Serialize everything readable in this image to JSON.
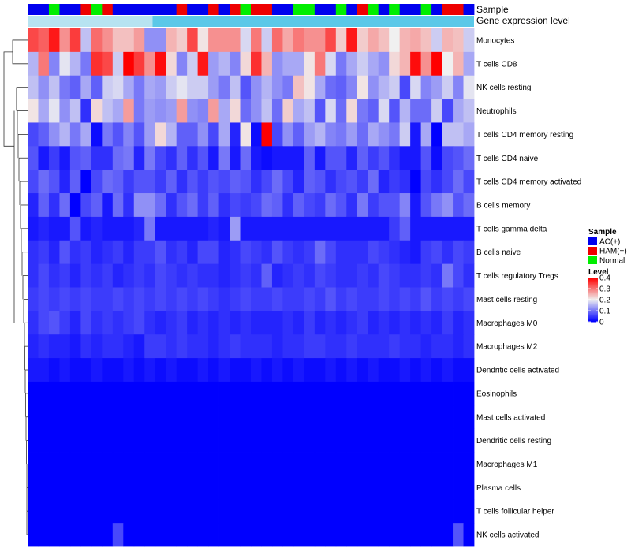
{
  "chart_data": {
    "type": "heatmap",
    "annotation_labels": [
      "Sample",
      "Gene expression level"
    ],
    "sample_groups": [
      "AC",
      "AC",
      "Normal",
      "AC",
      "AC",
      "HAM",
      "Normal",
      "HAM",
      "AC",
      "AC",
      "AC",
      "AC",
      "AC",
      "AC",
      "HAM",
      "AC",
      "AC",
      "HAM",
      "AC",
      "HAM",
      "Normal",
      "HAM",
      "HAM",
      "AC",
      "AC",
      "Normal",
      "Normal",
      "AC",
      "AC",
      "Normal",
      "AC",
      "HAM",
      "Normal",
      "AC",
      "Normal",
      "AC",
      "AC",
      "Normal",
      "AC",
      "HAM",
      "HAM",
      "AC"
    ],
    "rows": [
      {
        "name": "Monocytes",
        "values": [
          0.34,
          0.32,
          0.38,
          0.28,
          0.35,
          0.16,
          0.31,
          0.28,
          0.24,
          0.24,
          0.27,
          0.12,
          0.12,
          0.25,
          0.23,
          0.34,
          0.21,
          0.28,
          0.28,
          0.28,
          0.18,
          0.3,
          0.17,
          0.31,
          0.26,
          0.3,
          0.28,
          0.28,
          0.34,
          0.23,
          0.38,
          0.23,
          0.26,
          0.24,
          0.2,
          0.25,
          0.26,
          0.24,
          0.17,
          0.25,
          0.24,
          0.17
        ]
      },
      {
        "name": "T cells CD8",
        "values": [
          0.15,
          0.3,
          0.11,
          0.19,
          0.15,
          0.1,
          0.36,
          0.34,
          0.17,
          0.4,
          0.35,
          0.28,
          0.39,
          0.22,
          0.11,
          0.17,
          0.38,
          0.13,
          0.15,
          0.11,
          0.22,
          0.36,
          0.25,
          0.12,
          0.14,
          0.14,
          0.21,
          0.3,
          0.18,
          0.1,
          0.14,
          0.17,
          0.14,
          0.12,
          0.22,
          0.25,
          0.39,
          0.28,
          0.4,
          0.2,
          0.25,
          0.14
        ]
      },
      {
        "name": "NK cells resting",
        "values": [
          0.16,
          0.12,
          0.16,
          0.1,
          0.08,
          0.14,
          0.08,
          0.17,
          0.18,
          0.14,
          0.1,
          0.14,
          0.13,
          0.17,
          0.19,
          0.17,
          0.17,
          0.13,
          0.1,
          0.16,
          0.07,
          0.12,
          0.15,
          0.12,
          0.1,
          0.24,
          0.21,
          0.14,
          0.09,
          0.08,
          0.11,
          0.21,
          0.12,
          0.15,
          0.17,
          0.06,
          0.18,
          0.11,
          0.13,
          0.17,
          0.11,
          0.19
        ]
      },
      {
        "name": "Neutrophils",
        "values": [
          0.21,
          0.14,
          0.19,
          0.12,
          0.16,
          0.04,
          0.22,
          0.16,
          0.14,
          0.27,
          0.1,
          0.13,
          0.12,
          0.13,
          0.27,
          0.12,
          0.11,
          0.27,
          0.14,
          0.22,
          0.09,
          0.12,
          0.16,
          0.09,
          0.23,
          0.14,
          0.16,
          0.07,
          0.18,
          0.09,
          0.22,
          0.1,
          0.08,
          0.18,
          0.07,
          0.15,
          0.09,
          0.09,
          0.17,
          0.06,
          0.14,
          0.16
        ]
      },
      {
        "name": "T cells CD4 memory resting",
        "values": [
          0.06,
          0.08,
          0.12,
          0.15,
          0.1,
          0.14,
          0.01,
          0.1,
          0.07,
          0.11,
          0.07,
          0.13,
          0.22,
          0.15,
          0.08,
          0.08,
          0.12,
          0.06,
          0.14,
          0.03,
          0.21,
          0.01,
          0.4,
          0.06,
          0.12,
          0.08,
          0.13,
          0.15,
          0.11,
          0.1,
          0.13,
          0.09,
          0.14,
          0.12,
          0.1,
          0.17,
          0.02,
          0.14,
          0.0,
          0.16,
          0.16,
          0.14
        ]
      },
      {
        "name": "T cells CD4 naive",
        "values": [
          0.07,
          0.02,
          0.05,
          0.02,
          0.07,
          0.08,
          0.04,
          0.04,
          0.09,
          0.1,
          0.03,
          0.1,
          0.06,
          0.04,
          0.08,
          0.04,
          0.07,
          0.02,
          0.1,
          0.02,
          0.09,
          0.02,
          0.01,
          0.02,
          0.02,
          0.02,
          0.08,
          0.02,
          0.07,
          0.07,
          0.03,
          0.08,
          0.05,
          0.07,
          0.04,
          0.02,
          0.02,
          0.07,
          0.01,
          0.06,
          0.07,
          0.09
        ]
      },
      {
        "name": "T cells CD4 memory activated",
        "values": [
          0.06,
          0.09,
          0.07,
          0.03,
          0.08,
          0.0,
          0.06,
          0.09,
          0.08,
          0.05,
          0.07,
          0.07,
          0.05,
          0.08,
          0.04,
          0.07,
          0.05,
          0.07,
          0.06,
          0.08,
          0.07,
          0.04,
          0.06,
          0.09,
          0.06,
          0.03,
          0.08,
          0.07,
          0.04,
          0.06,
          0.07,
          0.05,
          0.09,
          0.03,
          0.05,
          0.04,
          0.0,
          0.06,
          0.04,
          0.06,
          0.09,
          0.06
        ]
      },
      {
        "name": "B cells memory",
        "values": [
          0.03,
          0.08,
          0.04,
          0.09,
          0.0,
          0.06,
          0.08,
          0.02,
          0.09,
          0.04,
          0.12,
          0.12,
          0.09,
          0.04,
          0.07,
          0.09,
          0.05,
          0.08,
          0.04,
          0.06,
          0.05,
          0.06,
          0.09,
          0.08,
          0.04,
          0.08,
          0.06,
          0.05,
          0.09,
          0.07,
          0.04,
          0.1,
          0.05,
          0.07,
          0.07,
          0.11,
          0.02,
          0.07,
          0.1,
          0.12,
          0.07,
          0.09
        ]
      },
      {
        "name": "T cells gamma delta",
        "values": [
          0.02,
          0.03,
          0.02,
          0.02,
          0.07,
          0.02,
          0.03,
          0.02,
          0.02,
          0.02,
          0.03,
          0.1,
          0.02,
          0.02,
          0.02,
          0.02,
          0.02,
          0.03,
          0.02,
          0.13,
          0.02,
          0.02,
          0.02,
          0.02,
          0.02,
          0.02,
          0.02,
          0.02,
          0.02,
          0.02,
          0.02,
          0.02,
          0.02,
          0.02,
          0.05,
          0.08,
          0.02,
          0.02,
          0.02,
          0.02,
          0.02,
          0.02
        ]
      },
      {
        "name": "B cells naive",
        "values": [
          0.04,
          0.05,
          0.03,
          0.07,
          0.04,
          0.05,
          0.03,
          0.04,
          0.05,
          0.03,
          0.05,
          0.05,
          0.07,
          0.04,
          0.05,
          0.03,
          0.06,
          0.06,
          0.03,
          0.04,
          0.06,
          0.05,
          0.04,
          0.07,
          0.05,
          0.04,
          0.05,
          0.09,
          0.06,
          0.04,
          0.04,
          0.04,
          0.06,
          0.05,
          0.04,
          0.03,
          0.02,
          0.05,
          0.06,
          0.04,
          0.06,
          0.05
        ]
      },
      {
        "name": "T cells regulatory  Tregs",
        "values": [
          0.04,
          0.06,
          0.04,
          0.05,
          0.03,
          0.05,
          0.04,
          0.05,
          0.03,
          0.04,
          0.05,
          0.04,
          0.06,
          0.05,
          0.04,
          0.05,
          0.04,
          0.04,
          0.03,
          0.04,
          0.05,
          0.04,
          0.08,
          0.03,
          0.04,
          0.05,
          0.04,
          0.06,
          0.05,
          0.04,
          0.04,
          0.05,
          0.04,
          0.06,
          0.05,
          0.04,
          0.04,
          0.05,
          0.04,
          0.1,
          0.06,
          0.04
        ]
      },
      {
        "name": "Mast cells resting",
        "values": [
          0.05,
          0.06,
          0.05,
          0.06,
          0.05,
          0.06,
          0.05,
          0.05,
          0.06,
          0.05,
          0.06,
          0.05,
          0.06,
          0.05,
          0.06,
          0.05,
          0.06,
          0.05,
          0.04,
          0.05,
          0.06,
          0.05,
          0.05,
          0.06,
          0.05,
          0.05,
          0.06,
          0.05,
          0.07,
          0.05,
          0.06,
          0.05,
          0.05,
          0.06,
          0.05,
          0.06,
          0.05,
          0.07,
          0.05,
          0.06,
          0.05,
          0.06
        ]
      },
      {
        "name": "Macrophages M0",
        "values": [
          0.04,
          0.06,
          0.07,
          0.05,
          0.03,
          0.06,
          0.04,
          0.05,
          0.04,
          0.05,
          0.06,
          0.04,
          0.03,
          0.04,
          0.05,
          0.03,
          0.04,
          0.03,
          0.04,
          0.03,
          0.04,
          0.03,
          0.03,
          0.03,
          0.04,
          0.03,
          0.05,
          0.03,
          0.04,
          0.03,
          0.04,
          0.05,
          0.03,
          0.04,
          0.03,
          0.04,
          0.03,
          0.04,
          0.03,
          0.05,
          0.03,
          0.04
        ]
      },
      {
        "name": "Macrophages M2",
        "values": [
          0.03,
          0.04,
          0.03,
          0.03,
          0.02,
          0.04,
          0.03,
          0.04,
          0.04,
          0.03,
          0.02,
          0.05,
          0.05,
          0.04,
          0.05,
          0.04,
          0.04,
          0.03,
          0.04,
          0.05,
          0.04,
          0.04,
          0.04,
          0.03,
          0.04,
          0.04,
          0.05,
          0.05,
          0.04,
          0.04,
          0.05,
          0.04,
          0.04,
          0.04,
          0.05,
          0.04,
          0.04,
          0.03,
          0.04,
          0.04,
          0.03,
          0.04
        ]
      },
      {
        "name": "Dendritic cells activated",
        "values": [
          0.02,
          0.02,
          0.01,
          0.02,
          0.01,
          0.01,
          0.02,
          0.01,
          0.01,
          0.02,
          0.01,
          0.02,
          0.01,
          0.02,
          0.01,
          0.01,
          0.02,
          0.01,
          0.02,
          0.01,
          0.01,
          0.02,
          0.01,
          0.02,
          0.01,
          0.02,
          0.01,
          0.01,
          0.02,
          0.01,
          0.02,
          0.01,
          0.02,
          0.01,
          0.01,
          0.02,
          0.01,
          0.02,
          0.01,
          0.02,
          0.01,
          0.01
        ]
      },
      {
        "name": "Eosinophils",
        "values": [
          0,
          0,
          0,
          0,
          0,
          0,
          0,
          0,
          0,
          0,
          0,
          0,
          0,
          0,
          0,
          0,
          0,
          0,
          0,
          0,
          0,
          0,
          0,
          0,
          0,
          0,
          0,
          0,
          0,
          0,
          0,
          0,
          0,
          0,
          0,
          0,
          0,
          0,
          0,
          0,
          0,
          0
        ]
      },
      {
        "name": "Mast cells activated",
        "values": [
          0,
          0,
          0,
          0,
          0,
          0,
          0,
          0,
          0,
          0,
          0,
          0,
          0,
          0,
          0,
          0,
          0,
          0,
          0,
          0,
          0,
          0,
          0,
          0,
          0,
          0,
          0,
          0,
          0,
          0,
          0,
          0,
          0,
          0,
          0,
          0,
          0,
          0,
          0,
          0,
          0,
          0
        ]
      },
      {
        "name": "Dendritic cells resting",
        "values": [
          0,
          0,
          0,
          0,
          0,
          0,
          0,
          0,
          0,
          0,
          0,
          0,
          0,
          0,
          0,
          0,
          0,
          0,
          0,
          0,
          0,
          0,
          0,
          0,
          0,
          0,
          0,
          0,
          0,
          0,
          0,
          0,
          0,
          0,
          0,
          0,
          0,
          0,
          0,
          0,
          0,
          0
        ]
      },
      {
        "name": "Macrophages M1",
        "values": [
          0,
          0,
          0,
          0,
          0,
          0,
          0,
          0,
          0,
          0,
          0,
          0,
          0,
          0,
          0,
          0,
          0,
          0,
          0,
          0,
          0,
          0,
          0,
          0,
          0,
          0,
          0,
          0,
          0,
          0,
          0,
          0,
          0,
          0,
          0,
          0,
          0,
          0,
          0,
          0,
          0,
          0
        ]
      },
      {
        "name": "Plasma cells",
        "values": [
          0,
          0,
          0,
          0,
          0,
          0,
          0,
          0,
          0,
          0,
          0,
          0,
          0,
          0,
          0,
          0,
          0,
          0,
          0,
          0,
          0,
          0,
          0,
          0,
          0,
          0,
          0,
          0,
          0,
          0,
          0,
          0,
          0,
          0,
          0,
          0,
          0,
          0,
          0,
          0,
          0,
          0
        ]
      },
      {
        "name": "T cells follicular helper",
        "values": [
          0,
          0,
          0,
          0,
          0,
          0,
          0,
          0,
          0,
          0,
          0,
          0,
          0,
          0,
          0,
          0,
          0,
          0,
          0,
          0,
          0,
          0,
          0,
          0,
          0,
          0,
          0,
          0,
          0,
          0,
          0,
          0,
          0,
          0,
          0,
          0,
          0,
          0,
          0,
          0,
          0,
          0
        ]
      },
      {
        "name": "NK cells activated",
        "values": [
          0,
          0,
          0,
          0,
          0,
          0,
          0,
          0,
          0.06,
          0,
          0,
          0,
          0,
          0,
          0,
          0,
          0,
          0,
          0,
          0,
          0,
          0,
          0,
          0,
          0,
          0,
          0,
          0,
          0,
          0,
          0,
          0,
          0,
          0,
          0,
          0,
          0,
          0,
          0,
          0,
          0.07,
          0
        ]
      }
    ],
    "legend_sample": {
      "title": "Sample",
      "items": [
        {
          "key": "AC",
          "label": "AC(+)",
          "color": "#0000ee"
        },
        {
          "key": "HAM",
          "label": "HAM(+)",
          "color": "#ee0000"
        },
        {
          "key": "Normal",
          "label": "Normal",
          "color": "#00ee00"
        }
      ]
    },
    "legend_level": {
      "title": "Level",
      "ticks": [
        "0.4",
        "0.3",
        "0.2",
        "0.1",
        "0"
      ],
      "range": [
        0,
        0.4
      ]
    },
    "color_scale": {
      "low": "#0000ff",
      "mid": "#f0f0f0",
      "high": "#ff0000",
      "midpoint": 0.2
    },
    "expression_bar_color": "#5bc8e8",
    "expression_bar_light": "#b7e3f1"
  }
}
